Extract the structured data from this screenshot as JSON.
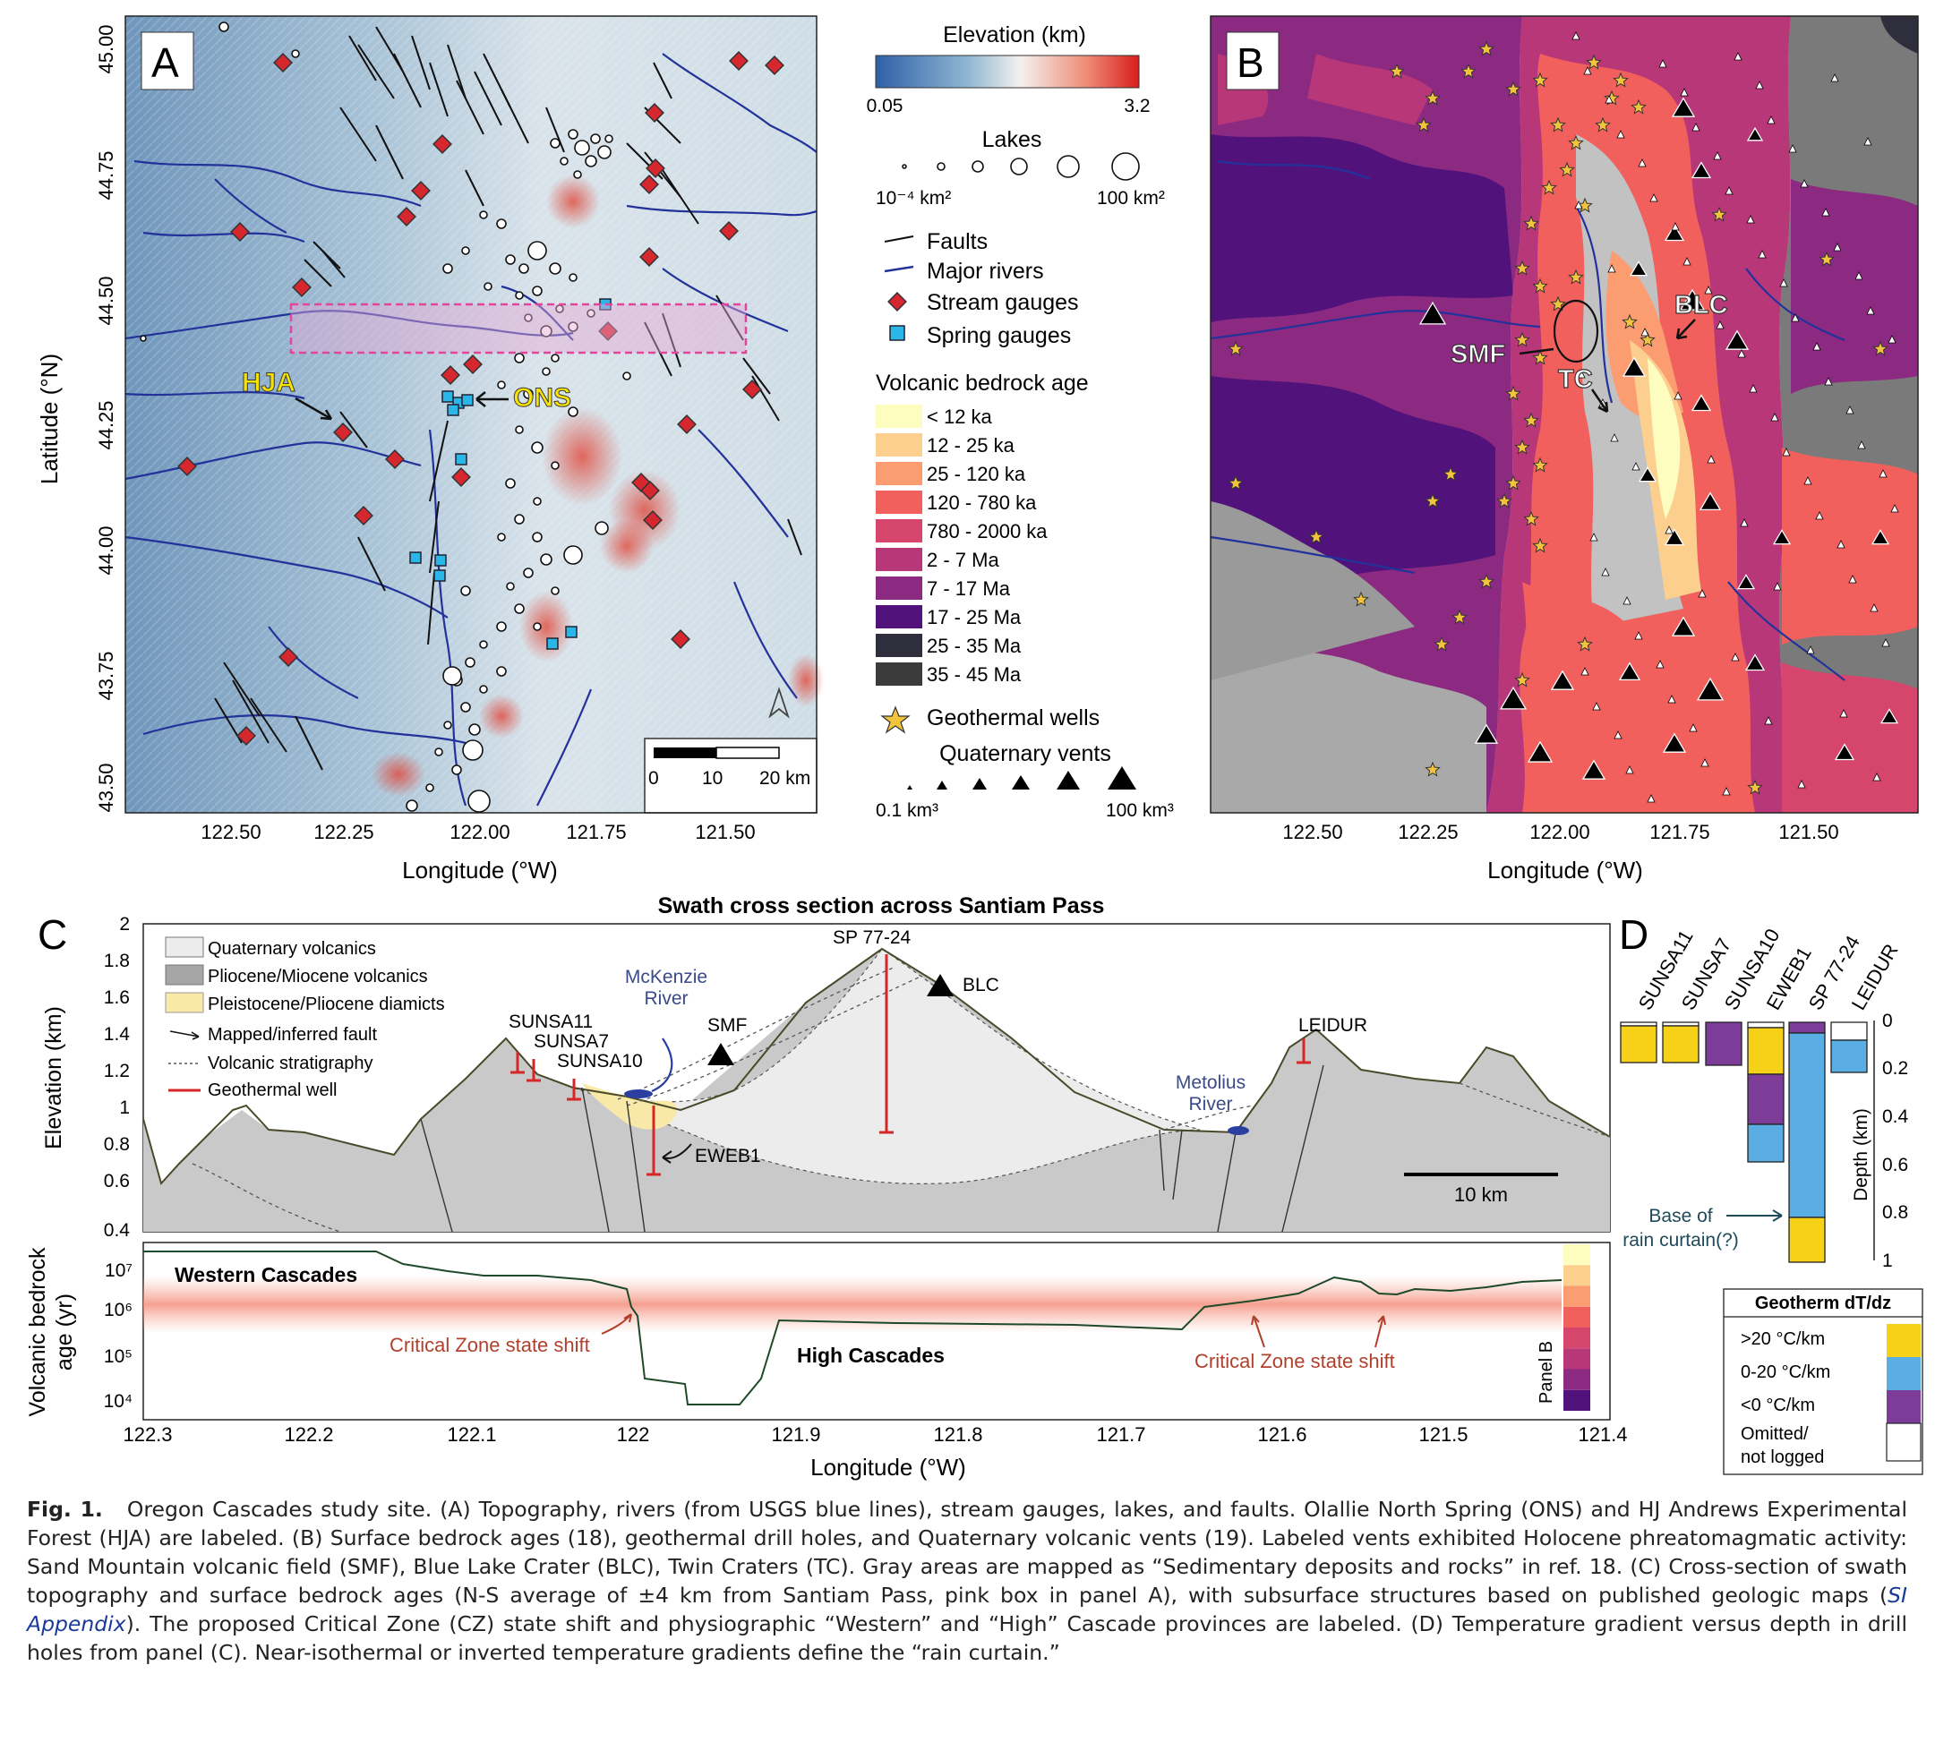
{
  "panel_a": {
    "letter": "A",
    "ylabel": "Latitude (°N)",
    "xlabel": "Longitude (°W)",
    "yticks": [
      "45.00",
      "44.75",
      "44.50",
      "44.25",
      "44.00",
      "43.75",
      "43.50"
    ],
    "xticks": [
      "122.50",
      "122.25",
      "122.00",
      "121.75",
      "121.50"
    ],
    "label_hja": "HJA",
    "label_ons": "ONS",
    "scalebar": [
      "0",
      "10",
      "20 km"
    ]
  },
  "legend_a": {
    "elevation_title": "Elevation (km)",
    "elevation_min": "0.05",
    "elevation_max": "3.2",
    "colorbar": {
      "low": "#2f5fa8",
      "mid": "#f4f1ee",
      "high": "#d81d1d"
    },
    "lakes_title": "Lakes",
    "lakes_min": "10⁻⁴ km²",
    "lakes_max": "100 km²",
    "faults": "Faults",
    "rivers": "Major rivers",
    "stream_gauges": "Stream gauges",
    "spring_gauges": "Spring gauges"
  },
  "legend_b": {
    "title": "Volcanic bedrock age",
    "classes": [
      {
        "label": "< 12 ka",
        "color": "#fcfdbf"
      },
      {
        "label": "12 - 25 ka",
        "color": "#fdcf8f"
      },
      {
        "label": "25 - 120 ka",
        "color": "#fc9c71"
      },
      {
        "label": "120 - 780 ka",
        "color": "#f1605d"
      },
      {
        "label": "780 - 2000 ka",
        "color": "#d6456b"
      },
      {
        "label": "2 - 7 Ma",
        "color": "#b73779"
      },
      {
        "label": "7 - 17 Ma",
        "color": "#8c2981"
      },
      {
        "label": "17 - 25 Ma",
        "color": "#51127c"
      },
      {
        "label": "25 - 35 Ma",
        "color": "#2e2e3c"
      },
      {
        "label": "35 - 45 Ma",
        "color": "#3b3b3b"
      }
    ],
    "geothermal_wells": "Geothermal wells",
    "vents_title": "Quaternary vents",
    "vents_min": "0.1 km³",
    "vents_max": "100 km³"
  },
  "panel_b": {
    "letter": "B",
    "xlabel": "Longitude (°W)",
    "xticks": [
      "122.50",
      "122.25",
      "122.00",
      "121.75",
      "121.50"
    ],
    "label_smf": "SMF",
    "label_tc": "TC",
    "label_blc": "BLC"
  },
  "panel_c": {
    "letter": "C",
    "title": "Swath cross section across Santiam Pass",
    "ylabel": "Elevation (km)",
    "yticks": [
      "2",
      "1.8",
      "1.6",
      "1.4",
      "1.2",
      "1",
      "0.8",
      "0.6",
      "0.4"
    ],
    "legend": [
      "Quaternary volcanics",
      "Pliocene/Miocene volcanics",
      "Pleistocene/Pliocene diamicts",
      "Mapped/inferred fault",
      "Volcanic stratigraphy",
      "Geothermal well"
    ],
    "labels": {
      "sunsa11": "SUNSA11",
      "sunsa7": "SUNSA7",
      "sunsa10": "SUNSA10",
      "mckenzie_1": "McKenzie",
      "mckenzie_2": "River",
      "smf": "SMF",
      "sp": "SP 77-24",
      "blc": "BLC",
      "eweb1": "EWEB1",
      "metolius_1": "Metolius",
      "metolius_2": "River",
      "leidur": "LEIDUR",
      "scale": "10 km"
    }
  },
  "panel_c_age": {
    "ylabel_1": "Volcanic bedrock",
    "ylabel_2": "age (yr)",
    "yticks": [
      "10⁷",
      "10⁶",
      "10⁵",
      "10⁴"
    ],
    "western": "Western Cascades",
    "high": "High Cascades",
    "shift_left": "Critical Zone state shift",
    "shift_right": "Critical Zone state shift",
    "panel_b_tag": "Panel B",
    "xlabel": "Longitude (°W)",
    "xticks": [
      "122.3",
      "122.2",
      "122.1",
      "122",
      "121.9",
      "121.8",
      "121.7",
      "121.6",
      "121.5",
      "121.4"
    ]
  },
  "panel_d": {
    "letter": "D",
    "wells": [
      "SUNSA11",
      "SUNSA7",
      "SUNSA10",
      "EWEB1",
      "SP 77-24",
      "LEIDUR"
    ],
    "ylabel": "Depth (km)",
    "yticks": [
      "0",
      "0.2",
      "0.4",
      "0.6",
      "0.8",
      "1"
    ],
    "annotation_1": "Base of",
    "annotation_2": "rain curtain(?)",
    "legend_title": "Geotherm dT/dz",
    "legend": [
      {
        "label": ">20 °C/km",
        "color": "#f7d117"
      },
      {
        "label": "0-20 °C/km",
        "color": "#5aaee3"
      },
      {
        "label": "<0 °C/km",
        "color": "#7d3c98"
      },
      {
        "label": "Omitted/",
        "color": "#ffffff"
      },
      {
        "label": "not logged",
        "color": ""
      }
    ]
  },
  "caption": {
    "fig_num": "Fig. 1.",
    "text": "Oregon Cascades study site. (A) Topography, rivers (from USGS blue lines), stream gauges, lakes, and faults. Olallie North Spring (ONS) and HJ Andrews Experimental Forest (HJA) are labeled. (B) Surface bedrock ages (18), geothermal drill holes, and Quaternary volcanic vents (19). Labeled vents exhibited Holocene phreatomagmatic activity: Sand Mountain volcanic field (SMF), Blue Lake Crater (BLC), Twin Craters (TC). Gray areas are mapped as “Sedimentary deposits and rocks” in ref. 18. (C) Cross-section of swath topography and surface bedrock ages (N-S average of ±4 km from Santiam Pass, pink box in panel A), with subsurface structures based on published geologic maps (",
    "si": "SI Appendix",
    "text2": "). The proposed Critical Zone (CZ) state shift and physiographic “Western” and “High” Cascade provinces are labeled. (D) Temperature gradient versus depth in drill holes from panel (C). Near-isothermal or inverted temperature gradients define the “rain curtain.”"
  }
}
